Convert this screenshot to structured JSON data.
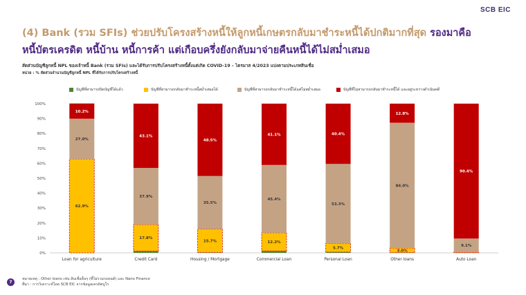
{
  "header": {
    "logo": "SCB EIC",
    "title_main": "(4) Bank (รวม SFIs) ช่วยปรับโครงสร้างหนี้ให้ลูกหนี้เกษตรกลับมาชำระหนี้ได้ปกติมากที่สุด ",
    "title_highlight_1": "รองมาคือ",
    "title_highlight_2": "หนี้บัตรเครดิต หนี้บ้าน หนี้การค้า แต่เกือบครึ่งยังกลับมาจ่ายคืนหนี้ได้ไม่สม่ำเสมอ",
    "subtitle": "สัดส่วนบัญชีลูกหนี้ NPL ของเจ้าหนี้ Bank (รวม SFIs) และได้รับการปรับโครงสร้างหนี้ตั้งแต่เกิด COVID-19 – ไตรมาส 4/2023 แบ่งตามประเภทสินเชื่อ",
    "unit": "หน่วย : % สัดส่วนจำนวนบัญชีลูกหนี้ NPL ที่ได้รับการปรับโครงสร้างหนี้"
  },
  "chart_data": {
    "type": "bar",
    "stacked": true,
    "categories": [
      "Loan for agriculture",
      "Credit Card",
      "Housing / Mortgage",
      "Commercial Loan",
      "Personal Loan",
      "Other loans",
      "Auto Loan"
    ],
    "series": [
      {
        "name": "บัญชีที่สามารถปิดบัญชีได้แล้ว",
        "color": "#548235",
        "values": [
          0.0,
          1.2,
          0.3,
          1.3,
          0.6,
          0.2,
          0.1
        ]
      },
      {
        "name": "บัญชีที่สามารถกลับมาชำระหนี้สม่ำเสมอได้",
        "color": "#ffc000",
        "values": [
          62.9,
          17.8,
          15.7,
          12.2,
          5.7,
          3.0,
          0.4
        ]
      },
      {
        "name": "บัญชีที่สามารถกลับมาชำระหนี้ได้แต่ไม่สม่ำเสมอ",
        "color": "#c4a385",
        "values": [
          27.0,
          37.9,
          35.5,
          45.4,
          53.3,
          84.0,
          9.1
        ]
      },
      {
        "name": "บัญชีที่ไม่สามารถกลับมาชำระหนี้ได้ และอยู่ระหว่างดำเนินคดี",
        "color": "#c00000",
        "values": [
          10.2,
          43.1,
          48.5,
          41.1,
          40.4,
          12.8,
          90.4
        ]
      }
    ],
    "data_labels": [
      [
        null,
        null,
        null,
        null,
        null,
        null,
        null
      ],
      [
        "62.9%",
        "17.8%",
        "15.7%",
        "12.2%",
        "5.7%",
        "3.0%",
        null
      ],
      [
        "27.0%",
        "37.9%",
        "35.5%",
        "45.4%",
        "53.3%",
        "84.0%",
        "9.1%"
      ],
      [
        "10.2%",
        "43.1%",
        "48.5%",
        "41.1%",
        "40.4%",
        "12.8%",
        "90.4%"
      ]
    ],
    "yticks": [
      "0%",
      "10%",
      "20%",
      "30%",
      "40%",
      "50%",
      "60%",
      "70%",
      "80%",
      "90%",
      "100%"
    ],
    "ylim": [
      0,
      100
    ],
    "grid": false,
    "legend_position": "top",
    "highlight_series": "บัญชีที่สามารถกลับมาชำระหนี้สม่ำเสมอได้",
    "highlight_style": "dashed red outline"
  },
  "footer": {
    "note": "หมายเหตุ : Other loans เช่น สินเชื่ออื่นๆ (ที่ไม่รวมรถยนต์) และ Nano Finance",
    "source": "ที่มา : การวิเคราะห์โดย SCB EIC จากข้อมูลเครดิตบูโร",
    "page": "7"
  }
}
